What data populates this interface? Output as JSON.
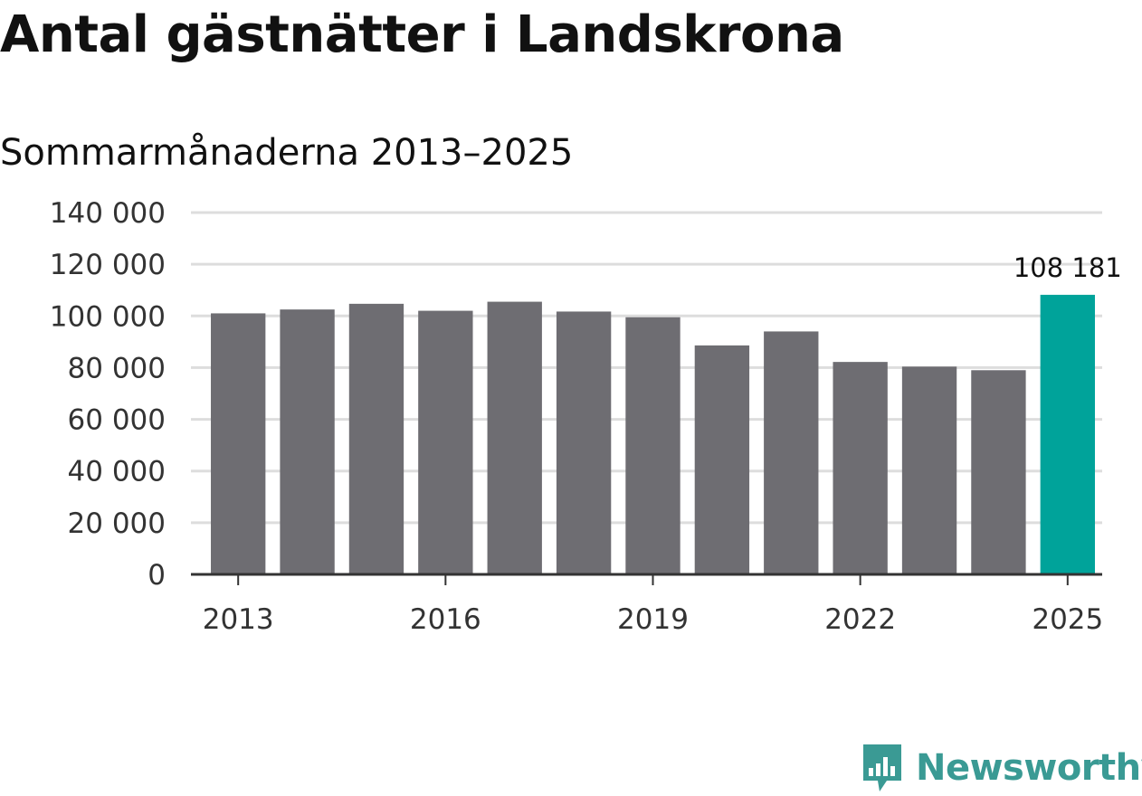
{
  "header": {
    "title": "Antal gästnätter i Landskrona",
    "subtitle": "Sommarmånaderna 2013–2025"
  },
  "brand": {
    "name": "Newsworthy",
    "icon": "newsworthy-logo-icon",
    "color": "#3a9a94"
  },
  "colors": {
    "bar_default": "#6e6d72",
    "bar_highlight": "#00a39a",
    "grid": "#dddddd",
    "axis": "#333333"
  },
  "chart_data": {
    "type": "bar",
    "categories": [
      "2013",
      "2014",
      "2015",
      "2016",
      "2017",
      "2018",
      "2019",
      "2020",
      "2021",
      "2022",
      "2023",
      "2024",
      "2025"
    ],
    "values": [
      101000,
      102500,
      104700,
      102000,
      105500,
      101700,
      99500,
      88600,
      94000,
      82200,
      80400,
      79000,
      108181
    ],
    "title": "Antal gästnätter i Landskrona",
    "subtitle": "Sommarmånaderna 2013–2025",
    "xlabel": "",
    "ylabel": "",
    "ylim": [
      0,
      140000
    ],
    "yticks": [
      0,
      20000,
      40000,
      60000,
      80000,
      100000,
      120000,
      140000
    ],
    "ytick_labels": [
      "0",
      "20 000",
      "40 000",
      "60 000",
      "80 000",
      "100 000",
      "120 000",
      "140 000"
    ],
    "xticks": [
      "2013",
      "2016",
      "2019",
      "2022",
      "2025"
    ],
    "highlight_index": 12,
    "data_labels": [
      {
        "index": 12,
        "text": "108 181"
      }
    ],
    "grid": true,
    "legend": "none"
  }
}
